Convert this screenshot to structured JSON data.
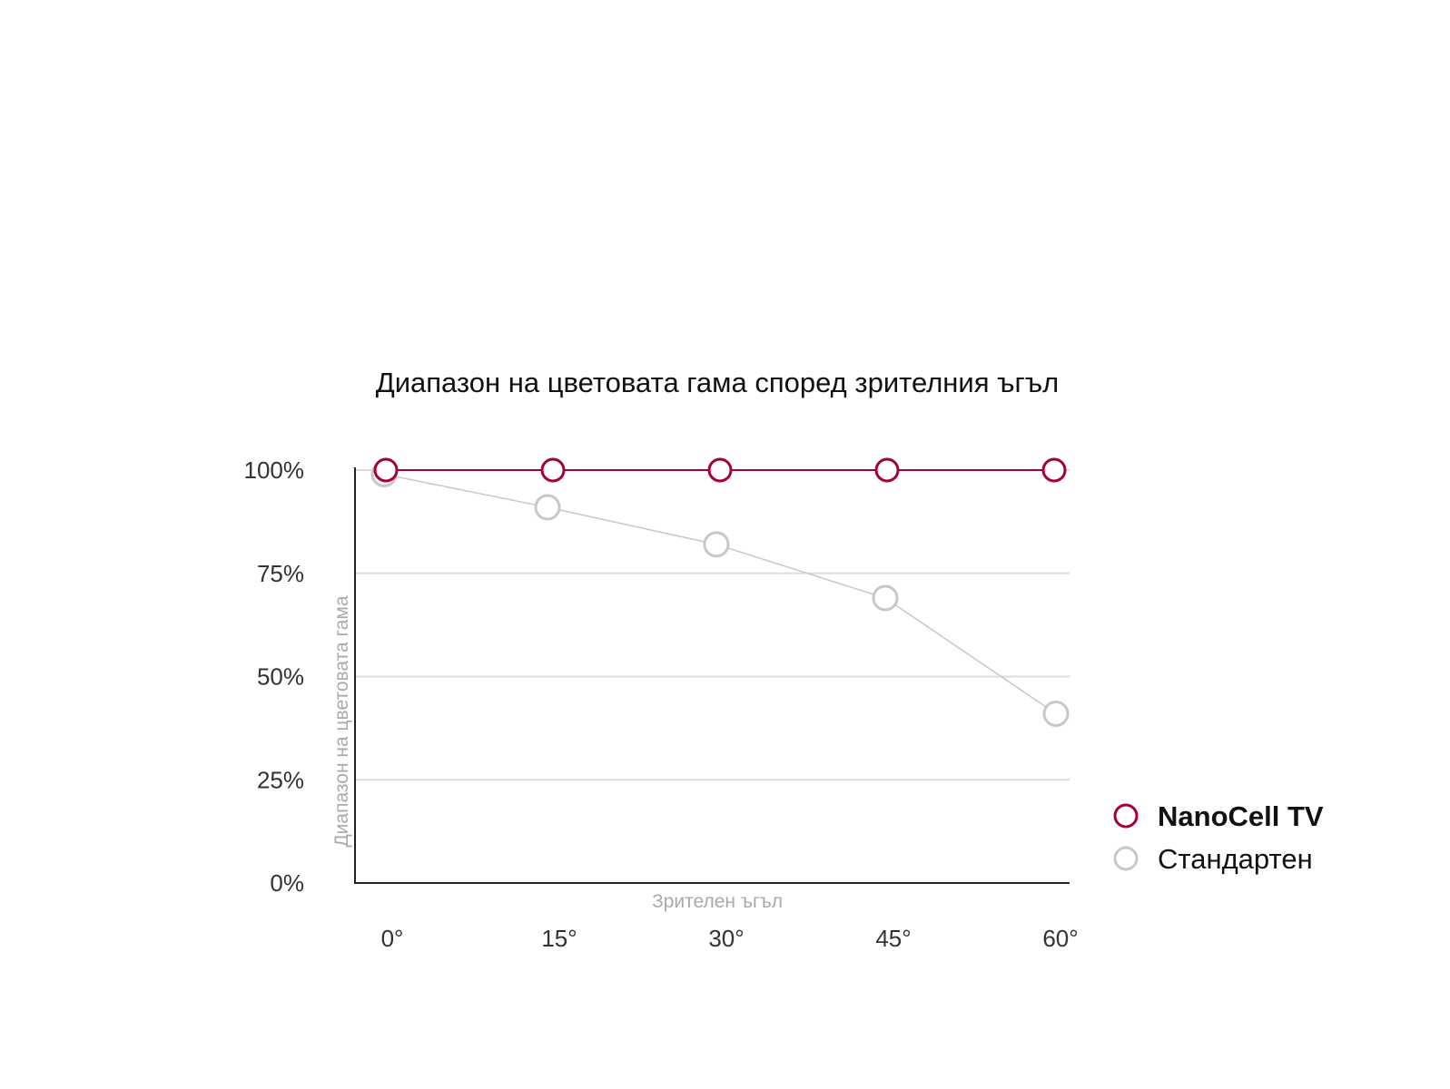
{
  "chart_data": {
    "type": "line",
    "title": "Диапазон на цветовата гама според зрителния ъгъл",
    "xlabel": "Зрителен ъгъл",
    "ylabel": "Диапазон на цветовата гама",
    "categories": [
      "0°",
      "15°",
      "30°",
      "45°",
      "60°"
    ],
    "y_ticks": [
      "0%",
      "25%",
      "50%",
      "75%",
      "100%"
    ],
    "ylim": [
      0,
      100
    ],
    "grid": true,
    "legend_position": "right",
    "series": [
      {
        "name": "NanoCell TV",
        "values": [
          100,
          100,
          100,
          100,
          100
        ],
        "color": "#a50034"
      },
      {
        "name": "Стандартен",
        "values": [
          99,
          91,
          82,
          69,
          41
        ],
        "color": "#c8c8c8"
      }
    ]
  }
}
